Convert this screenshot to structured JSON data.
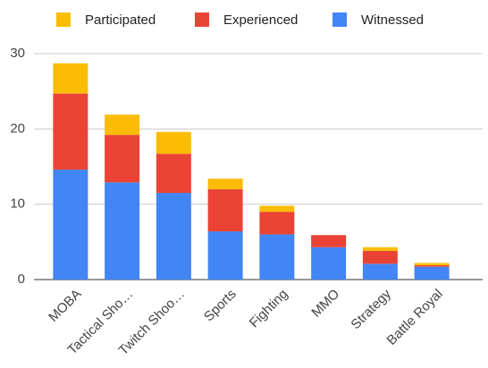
{
  "chart_data": {
    "type": "bar",
    "stacked": true,
    "categories": [
      "MOBA",
      "Tactical Sho…",
      "Twitch Shoo…",
      "Sports",
      "Fighting",
      "MMO",
      "Strategy",
      "Battle Royal"
    ],
    "series": [
      {
        "name": "Participated",
        "color": "#fbbc04",
        "values": [
          4.0,
          2.7,
          2.9,
          1.4,
          0.8,
          0,
          0.5,
          0.3
        ]
      },
      {
        "name": "Experienced",
        "color": "#ea4335",
        "values": [
          10.1,
          6.3,
          5.2,
          5.6,
          3.0,
          1.6,
          1.7,
          0.2
        ]
      },
      {
        "name": "Witnessed",
        "color": "#4285f4",
        "values": [
          14.6,
          12.9,
          11.5,
          6.4,
          6.0,
          4.3,
          2.1,
          1.7
        ]
      }
    ],
    "ylim": [
      0,
      30
    ],
    "yticks": [
      0,
      10,
      20,
      30
    ],
    "grid": true,
    "legend": "top"
  }
}
